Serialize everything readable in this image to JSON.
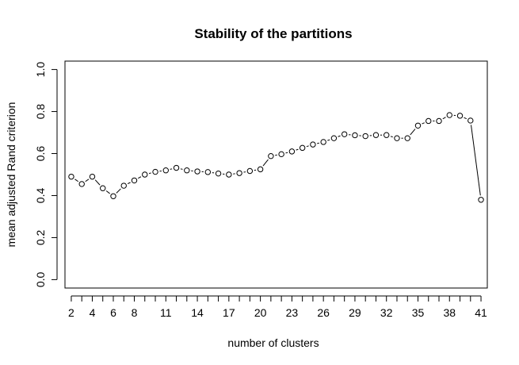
{
  "chart_data": {
    "type": "line",
    "title": "Stability of the partitions",
    "xlabel": "number of clusters",
    "ylabel": "mean adjusted Rand criterion",
    "xlim": [
      1.4,
      41.6
    ],
    "ylim": [
      -0.04,
      1.04
    ],
    "xticks": [
      2,
      4,
      6,
      8,
      11,
      14,
      17,
      20,
      23,
      26,
      29,
      32,
      35,
      38,
      41
    ],
    "yticks": [
      0.0,
      0.2,
      0.4,
      0.6,
      0.8,
      1.0
    ],
    "ytick_labels": [
      "0.0",
      "0.2",
      "0.4",
      "0.6",
      "0.8",
      "1.0"
    ],
    "grid": false,
    "legend": "none",
    "x": [
      2,
      3,
      4,
      5,
      6,
      7,
      8,
      9,
      10,
      11,
      12,
      13,
      14,
      15,
      16,
      17,
      18,
      19,
      20,
      21,
      22,
      23,
      24,
      25,
      26,
      27,
      28,
      29,
      30,
      31,
      32,
      33,
      34,
      35,
      36,
      37,
      38,
      39,
      40,
      41
    ],
    "values": [
      0.49,
      0.455,
      0.49,
      0.435,
      0.397,
      0.447,
      0.472,
      0.5,
      0.513,
      0.52,
      0.532,
      0.52,
      0.515,
      0.512,
      0.505,
      0.5,
      0.507,
      0.517,
      0.525,
      0.588,
      0.597,
      0.61,
      0.627,
      0.643,
      0.655,
      0.673,
      0.692,
      0.687,
      0.683,
      0.688,
      0.688,
      0.673,
      0.673,
      0.733,
      0.755,
      0.755,
      0.783,
      0.78,
      0.757,
      0.38
    ]
  }
}
